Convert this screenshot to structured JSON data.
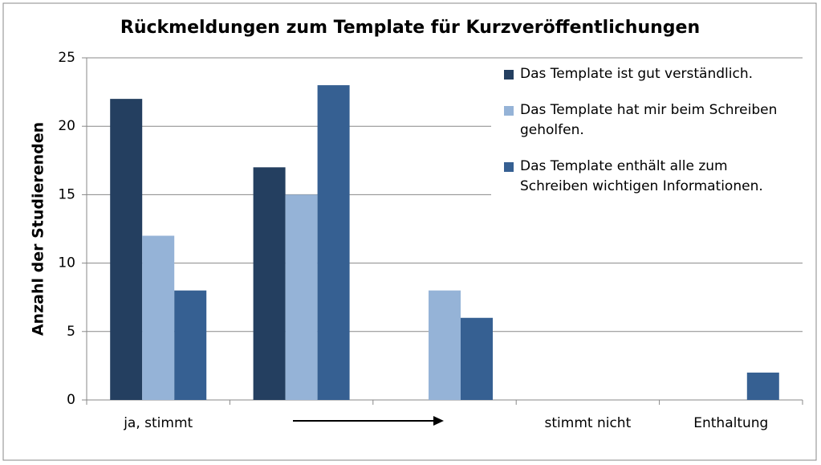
{
  "chart_data": {
    "type": "bar",
    "title": "Rückmeldungen zum Template für Kurzveröffentlichungen",
    "y_label": "Anzahl der Studierenden",
    "categories": [
      "ja, stimmt",
      null,
      null,
      "stimmt nicht",
      "Enthaltung"
    ],
    "series": [
      {
        "name": "Das Template ist gut verständlich.",
        "color": "#243f60",
        "values": [
          22,
          17,
          0,
          0,
          0
        ]
      },
      {
        "name": "Das Template hat mir beim Schreiben geholfen.",
        "color": "#95b3d7",
        "values": [
          12,
          15,
          8,
          0,
          0
        ]
      },
      {
        "name": "Das Template enthält alle zum Schreiben wichtigen Informationen.",
        "color": "#366092",
        "values": [
          8,
          23,
          6,
          0,
          2
        ]
      }
    ],
    "ylim": [
      0,
      25
    ],
    "yticks": [
      0,
      5,
      10,
      15,
      20,
      25
    ],
    "grid": true,
    "legend": "right"
  }
}
